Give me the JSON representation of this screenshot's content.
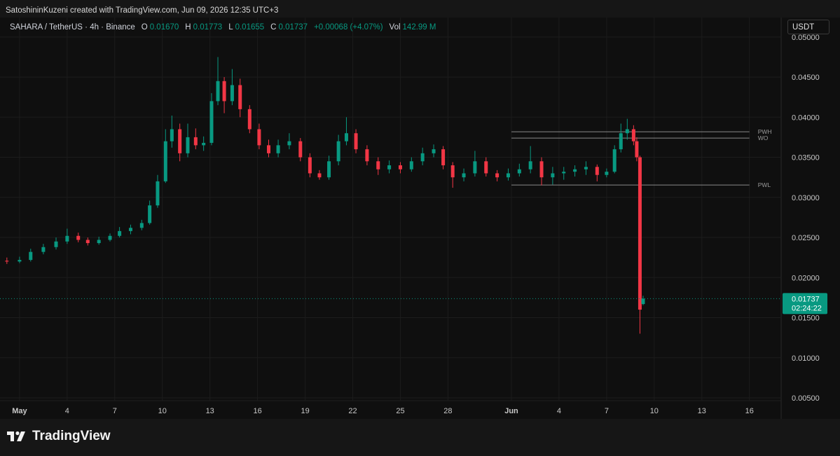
{
  "header": "SatoshininKuzeni created with TradingView.com, Jun 09, 2026 12:35 UTC+3",
  "chart_data": {
    "type": "candlestick",
    "legend": {
      "symbol": "SAHARA / TetherUS · 4h · Binance",
      "o_label": "O",
      "o": "0.01670",
      "h_label": "H",
      "h": "0.01773",
      "l_label": "L",
      "l": "0.01655",
      "c_label": "C",
      "c": "0.01737",
      "change": "+0.00068 (+4.07%)",
      "vol_label": "Vol",
      "vol": "142.99 M"
    },
    "currency": "USDT",
    "countdown": "02:24:22",
    "x": [
      -0.8,
      0,
      0.7,
      1.5,
      2.3,
      3,
      3.7,
      4.3,
      5,
      5.7,
      6.3,
      7,
      7.7,
      8.2,
      8.7,
      9.2,
      9.6,
      10.1,
      10.6,
      11.1,
      11.6,
      12.1,
      12.5,
      12.9,
      13.4,
      13.9,
      14.5,
      15.1,
      15.7,
      16.3,
      17,
      17.7,
      18.3,
      18.9,
      19.5,
      20.1,
      20.6,
      21.2,
      21.9,
      22.6,
      23.3,
      24,
      24.7,
      25.4,
      26.1,
      26.7,
      27.3,
      28,
      28.7,
      29.4,
      30.1,
      30.8,
      31.5,
      32.2,
      32.9,
      33.6,
      34.3,
      35,
      35.7,
      36.4,
      37,
      37.5,
      37.9,
      38.3,
      38.7,
      38.9,
      39.1,
      39.3
    ],
    "open": [
      0.0221,
      0.022,
      0.0222,
      0.0232,
      0.0238,
      0.0245,
      0.0252,
      0.0247,
      0.0243,
      0.0247,
      0.0252,
      0.0258,
      0.0262,
      0.0268,
      0.029,
      0.032,
      0.037,
      0.0385,
      0.0355,
      0.0375,
      0.0365,
      0.0368,
      0.042,
      0.0445,
      0.042,
      0.044,
      0.041,
      0.0385,
      0.0365,
      0.0355,
      0.0365,
      0.037,
      0.035,
      0.033,
      0.0325,
      0.0345,
      0.037,
      0.038,
      0.036,
      0.0345,
      0.0335,
      0.034,
      0.0335,
      0.0345,
      0.0355,
      0.036,
      0.034,
      0.0325,
      0.033,
      0.0345,
      0.033,
      0.0325,
      0.033,
      0.0335,
      0.0345,
      0.0325,
      0.033,
      0.0332,
      0.0335,
      0.0338,
      0.0328,
      0.0332,
      0.036,
      0.038,
      0.0385,
      0.037,
      0.035,
      0.0167
    ],
    "high": [
      0.0225,
      0.0226,
      0.0236,
      0.0242,
      0.025,
      0.0261,
      0.0256,
      0.025,
      0.0251,
      0.0255,
      0.0263,
      0.0266,
      0.0272,
      0.0296,
      0.0328,
      0.0385,
      0.0402,
      0.0392,
      0.0392,
      0.0386,
      0.0376,
      0.043,
      0.0475,
      0.045,
      0.046,
      0.0448,
      0.0415,
      0.0392,
      0.0372,
      0.0372,
      0.038,
      0.0374,
      0.0355,
      0.0334,
      0.0352,
      0.0378,
      0.04,
      0.0385,
      0.0365,
      0.035,
      0.0346,
      0.0344,
      0.035,
      0.0362,
      0.0366,
      0.0364,
      0.0344,
      0.0336,
      0.0358,
      0.035,
      0.0334,
      0.0336,
      0.0342,
      0.0364,
      0.035,
      0.0338,
      0.0338,
      0.034,
      0.0345,
      0.0341,
      0.0336,
      0.0365,
      0.0392,
      0.0398,
      0.039,
      0.0375,
      0.0352,
      0.01773
    ],
    "low": [
      0.0217,
      0.0218,
      0.022,
      0.0229,
      0.0235,
      0.0242,
      0.0244,
      0.024,
      0.0241,
      0.0245,
      0.025,
      0.0254,
      0.0259,
      0.0266,
      0.0287,
      0.0318,
      0.0362,
      0.0345,
      0.035,
      0.036,
      0.0358,
      0.0365,
      0.0415,
      0.0405,
      0.0415,
      0.04,
      0.038,
      0.036,
      0.035,
      0.035,
      0.036,
      0.0345,
      0.0325,
      0.0322,
      0.0322,
      0.034,
      0.0365,
      0.0355,
      0.034,
      0.0328,
      0.033,
      0.033,
      0.0332,
      0.034,
      0.035,
      0.0335,
      0.0312,
      0.032,
      0.0326,
      0.0326,
      0.032,
      0.0321,
      0.0326,
      0.033,
      0.0315,
      0.0316,
      0.0322,
      0.0326,
      0.0328,
      0.032,
      0.0325,
      0.033,
      0.0356,
      0.0372,
      0.0365,
      0.0345,
      0.013,
      0.01655
    ],
    "close": [
      0.022,
      0.0222,
      0.0232,
      0.0238,
      0.0245,
      0.0252,
      0.0247,
      0.0243,
      0.0247,
      0.0252,
      0.0258,
      0.0262,
      0.0268,
      0.029,
      0.032,
      0.037,
      0.0385,
      0.0355,
      0.0375,
      0.0365,
      0.0368,
      0.042,
      0.0445,
      0.042,
      0.044,
      0.041,
      0.0385,
      0.0365,
      0.0355,
      0.0365,
      0.037,
      0.035,
      0.033,
      0.0325,
      0.0345,
      0.037,
      0.038,
      0.036,
      0.0345,
      0.0335,
      0.034,
      0.0335,
      0.0345,
      0.0355,
      0.036,
      0.034,
      0.0325,
      0.033,
      0.0345,
      0.033,
      0.0325,
      0.033,
      0.0335,
      0.0345,
      0.0325,
      0.033,
      0.0332,
      0.0335,
      0.0338,
      0.0328,
      0.0332,
      0.036,
      0.038,
      0.0385,
      0.037,
      0.035,
      0.016,
      0.01737
    ],
    "up_color": "#089981",
    "down_color": "#f23645",
    "xlim": [
      -0.88,
      48
    ],
    "xticks": [
      {
        "value": 0,
        "label": "May"
      },
      {
        "value": 3,
        "label": "4"
      },
      {
        "value": 6,
        "label": "7"
      },
      {
        "value": 9,
        "label": "10"
      },
      {
        "value": 12,
        "label": "13"
      },
      {
        "value": 15,
        "label": "16"
      },
      {
        "value": 18,
        "label": "19"
      },
      {
        "value": 21,
        "label": "22"
      },
      {
        "value": 24,
        "label": "25"
      },
      {
        "value": 27,
        "label": "28"
      },
      {
        "value": 31,
        "label": "Jun"
      },
      {
        "value": 34,
        "label": "4"
      },
      {
        "value": 37,
        "label": "7"
      },
      {
        "value": 40,
        "label": "10"
      },
      {
        "value": 43,
        "label": "13"
      },
      {
        "value": 46,
        "label": "16"
      }
    ],
    "ylim": [
      0.00238,
      0.05243
    ],
    "yticks": [
      {
        "value": 0.005,
        "label": "0.00500"
      },
      {
        "value": 0.01,
        "label": "0.01000"
      },
      {
        "value": 0.015,
        "label": "0.01500"
      },
      {
        "value": 0.02,
        "label": "0.02000"
      },
      {
        "value": 0.025,
        "label": "0.02500"
      },
      {
        "value": 0.03,
        "label": "0.03000"
      },
      {
        "value": 0.035,
        "label": "0.03500"
      },
      {
        "value": 0.04,
        "label": "0.04000"
      },
      {
        "value": 0.045,
        "label": "0.04500"
      },
      {
        "value": 0.05,
        "label": "0.05000"
      }
    ],
    "grid": true,
    "levels": [
      {
        "name": "PWH",
        "value": 0.03818,
        "x": [
          31,
          46
        ]
      },
      {
        "name": "WO",
        "value": 0.0374,
        "x": [
          31,
          46
        ]
      },
      {
        "name": "PWL",
        "value": 0.03154,
        "x": [
          31,
          46
        ]
      }
    ]
  },
  "footer": {
    "brand": "TradingView"
  }
}
